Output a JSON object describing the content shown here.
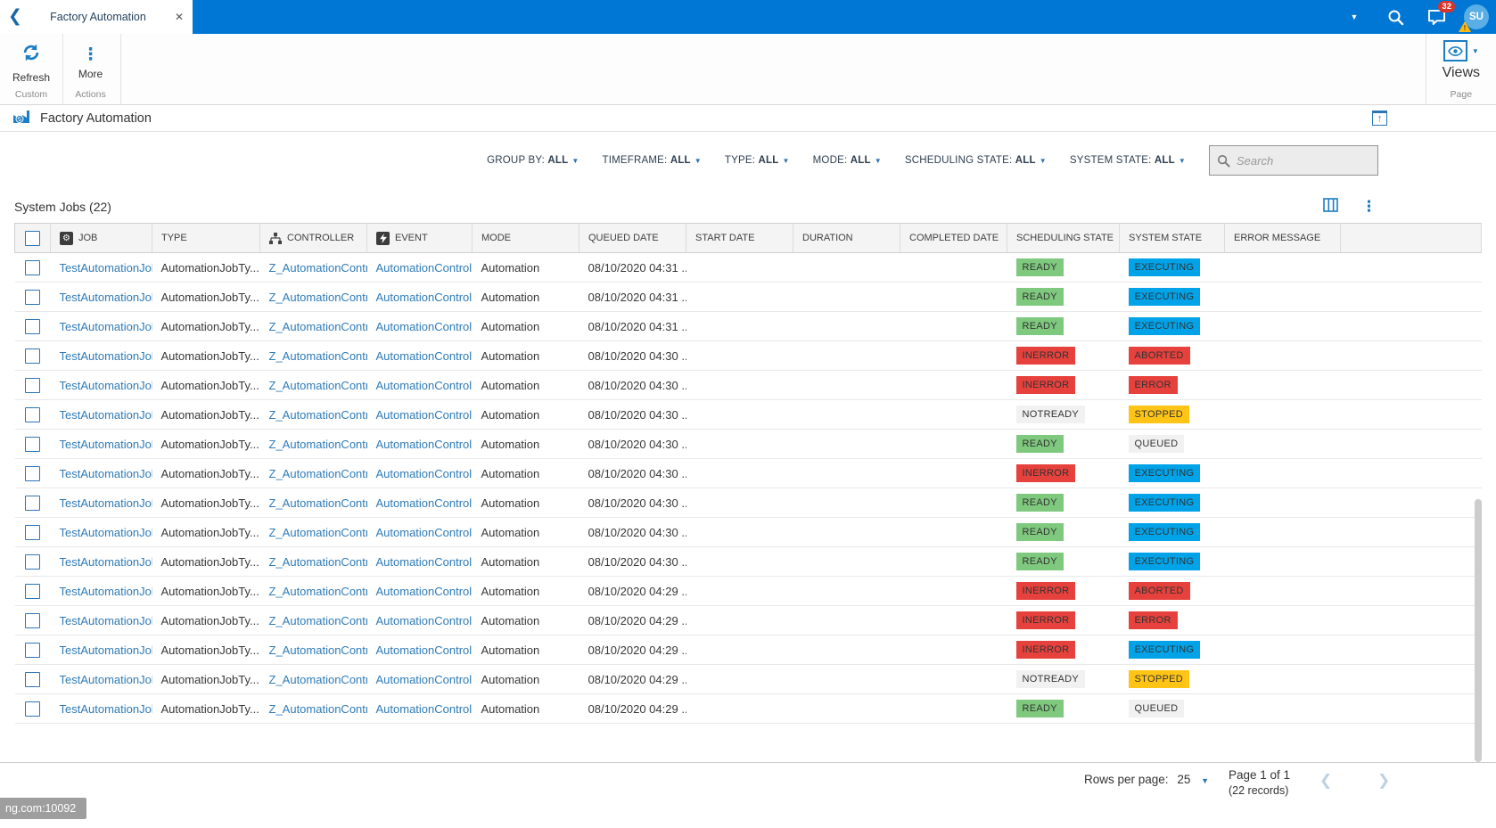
{
  "topbar": {
    "tab_title": "Factory Automation",
    "notification_badge": "32",
    "avatar_initials": "SU"
  },
  "ribbon": {
    "refresh": "Refresh",
    "more": "More",
    "group_custom": "Custom",
    "group_actions": "Actions",
    "views": "Views",
    "group_page": "Page"
  },
  "page": {
    "title": "Factory Automation"
  },
  "filterbar": {
    "filters": [
      {
        "label": "GROUP BY:",
        "value": "ALL"
      },
      {
        "label": "TIMEFRAME:",
        "value": "ALL"
      },
      {
        "label": "TYPE:",
        "value": "ALL"
      },
      {
        "label": "MODE:",
        "value": "ALL"
      },
      {
        "label": "SCHEDULING STATE:",
        "value": "ALL"
      },
      {
        "label": "SYSTEM STATE:",
        "value": "ALL"
      }
    ],
    "search_placeholder": "Search"
  },
  "section": {
    "title": "System Jobs (22)"
  },
  "table": {
    "columns": [
      {
        "key": "job",
        "label": "JOB",
        "icon": "gear-icon"
      },
      {
        "key": "type",
        "label": "TYPE"
      },
      {
        "key": "controller",
        "label": "CONTROLLER",
        "icon": "sitemap-icon"
      },
      {
        "key": "event",
        "label": "EVENT",
        "icon": "bolt-icon"
      },
      {
        "key": "mode",
        "label": "MODE"
      },
      {
        "key": "queued",
        "label": "QUEUED DATE"
      },
      {
        "key": "start",
        "label": "START DATE"
      },
      {
        "key": "duration",
        "label": "DURATION"
      },
      {
        "key": "completed",
        "label": "COMPLETED DATE"
      },
      {
        "key": "scheduling",
        "label": "SCHEDULING STATE"
      },
      {
        "key": "system",
        "label": "SYSTEM STATE"
      },
      {
        "key": "error",
        "label": "ERROR MESSAGE"
      },
      {
        "key": "blank",
        "label": ""
      }
    ],
    "rows": [
      {
        "job": "TestAutomationJob_",
        "type": "AutomationJobTy...",
        "controller": "Z_AutomationContr",
        "event": "AutomationControll",
        "mode": "Automation",
        "queued": "08/10/2020 04:31 ...",
        "start": "",
        "duration": "",
        "completed": "",
        "scheduling": "READY",
        "system": "EXECUTING",
        "error": ""
      },
      {
        "job": "TestAutomationJob_",
        "type": "AutomationJobTy...",
        "controller": "Z_AutomationContr",
        "event": "AutomationControll",
        "mode": "Automation",
        "queued": "08/10/2020 04:31 ...",
        "start": "",
        "duration": "",
        "completed": "",
        "scheduling": "READY",
        "system": "EXECUTING",
        "error": ""
      },
      {
        "job": "TestAutomationJob_",
        "type": "AutomationJobTy...",
        "controller": "Z_AutomationContr",
        "event": "AutomationControll",
        "mode": "Automation",
        "queued": "08/10/2020 04:31 ...",
        "start": "",
        "duration": "",
        "completed": "",
        "scheduling": "READY",
        "system": "EXECUTING",
        "error": ""
      },
      {
        "job": "TestAutomationJob_",
        "type": "AutomationJobTy...",
        "controller": "Z_AutomationContr",
        "event": "AutomationControll",
        "mode": "Automation",
        "queued": "08/10/2020 04:30 ...",
        "start": "",
        "duration": "",
        "completed": "",
        "scheduling": "INERROR",
        "system": "ABORTED",
        "error": ""
      },
      {
        "job": "TestAutomationJob_",
        "type": "AutomationJobTy...",
        "controller": "Z_AutomationContr",
        "event": "AutomationControll",
        "mode": "Automation",
        "queued": "08/10/2020 04:30 ...",
        "start": "",
        "duration": "",
        "completed": "",
        "scheduling": "INERROR",
        "system": "ERROR",
        "error": ""
      },
      {
        "job": "TestAutomationJob_",
        "type": "AutomationJobTy...",
        "controller": "Z_AutomationContr",
        "event": "AutomationControll",
        "mode": "Automation",
        "queued": "08/10/2020 04:30 ...",
        "start": "",
        "duration": "",
        "completed": "",
        "scheduling": "NOTREADY",
        "system": "STOPPED",
        "error": ""
      },
      {
        "job": "TestAutomationJob_",
        "type": "AutomationJobTy...",
        "controller": "Z_AutomationContr",
        "event": "AutomationControll",
        "mode": "Automation",
        "queued": "08/10/2020 04:30 ...",
        "start": "",
        "duration": "",
        "completed": "",
        "scheduling": "READY",
        "system": "QUEUED",
        "error": ""
      },
      {
        "job": "TestAutomationJob_",
        "type": "AutomationJobTy...",
        "controller": "Z_AutomationContr",
        "event": "AutomationControll",
        "mode": "Automation",
        "queued": "08/10/2020 04:30 ...",
        "start": "",
        "duration": "",
        "completed": "",
        "scheduling": "INERROR",
        "system": "EXECUTING",
        "error": ""
      },
      {
        "job": "TestAutomationJob_",
        "type": "AutomationJobTy...",
        "controller": "Z_AutomationContr",
        "event": "AutomationControll",
        "mode": "Automation",
        "queued": "08/10/2020 04:30 ...",
        "start": "",
        "duration": "",
        "completed": "",
        "scheduling": "READY",
        "system": "EXECUTING",
        "error": ""
      },
      {
        "job": "TestAutomationJob_",
        "type": "AutomationJobTy...",
        "controller": "Z_AutomationContr",
        "event": "AutomationControll",
        "mode": "Automation",
        "queued": "08/10/2020 04:30 ...",
        "start": "",
        "duration": "",
        "completed": "",
        "scheduling": "READY",
        "system": "EXECUTING",
        "error": ""
      },
      {
        "job": "TestAutomationJob_",
        "type": "AutomationJobTy...",
        "controller": "Z_AutomationContr",
        "event": "AutomationControll",
        "mode": "Automation",
        "queued": "08/10/2020 04:30 ...",
        "start": "",
        "duration": "",
        "completed": "",
        "scheduling": "READY",
        "system": "EXECUTING",
        "error": ""
      },
      {
        "job": "TestAutomationJob_",
        "type": "AutomationJobTy...",
        "controller": "Z_AutomationContr",
        "event": "AutomationControll",
        "mode": "Automation",
        "queued": "08/10/2020 04:29 ...",
        "start": "",
        "duration": "",
        "completed": "",
        "scheduling": "INERROR",
        "system": "ABORTED",
        "error": ""
      },
      {
        "job": "TestAutomationJob_",
        "type": "AutomationJobTy...",
        "controller": "Z_AutomationContr",
        "event": "AutomationControll",
        "mode": "Automation",
        "queued": "08/10/2020 04:29 ...",
        "start": "",
        "duration": "",
        "completed": "",
        "scheduling": "INERROR",
        "system": "ERROR",
        "error": ""
      },
      {
        "job": "TestAutomationJob_",
        "type": "AutomationJobTy...",
        "controller": "Z_AutomationContr",
        "event": "AutomationControll",
        "mode": "Automation",
        "queued": "08/10/2020 04:29 ...",
        "start": "",
        "duration": "",
        "completed": "",
        "scheduling": "INERROR",
        "system": "EXECUTING",
        "error": ""
      },
      {
        "job": "TestAutomationJob_",
        "type": "AutomationJobTy...",
        "controller": "Z_AutomationContr",
        "event": "AutomationControll",
        "mode": "Automation",
        "queued": "08/10/2020 04:29 ...",
        "start": "",
        "duration": "",
        "completed": "",
        "scheduling": "NOTREADY",
        "system": "STOPPED",
        "error": ""
      },
      {
        "job": "TestAutomationJob_",
        "type": "AutomationJobTy...",
        "controller": "Z_AutomationContr",
        "event": "AutomationControll",
        "mode": "Automation",
        "queued": "08/10/2020 04:29 ...",
        "start": "",
        "duration": "",
        "completed": "",
        "scheduling": "READY",
        "system": "QUEUED",
        "error": ""
      }
    ]
  },
  "badge_colors": {
    "READY": "#7fc97f",
    "EXECUTING": "#00a2e8",
    "INERROR": "#e6413c",
    "ABORTED": "#e6413c",
    "ERROR": "#e6413c",
    "NOTREADY": "#f1f1f1",
    "STOPPED": "#ffc415",
    "QUEUED": "#f1f1f1"
  },
  "footer": {
    "rows_per_page_label": "Rows per page:",
    "rows_per_page_value": "25",
    "page_label": "Page 1 of 1",
    "records_label": "(22 records)"
  },
  "status_tooltip": "ng.com:10092"
}
